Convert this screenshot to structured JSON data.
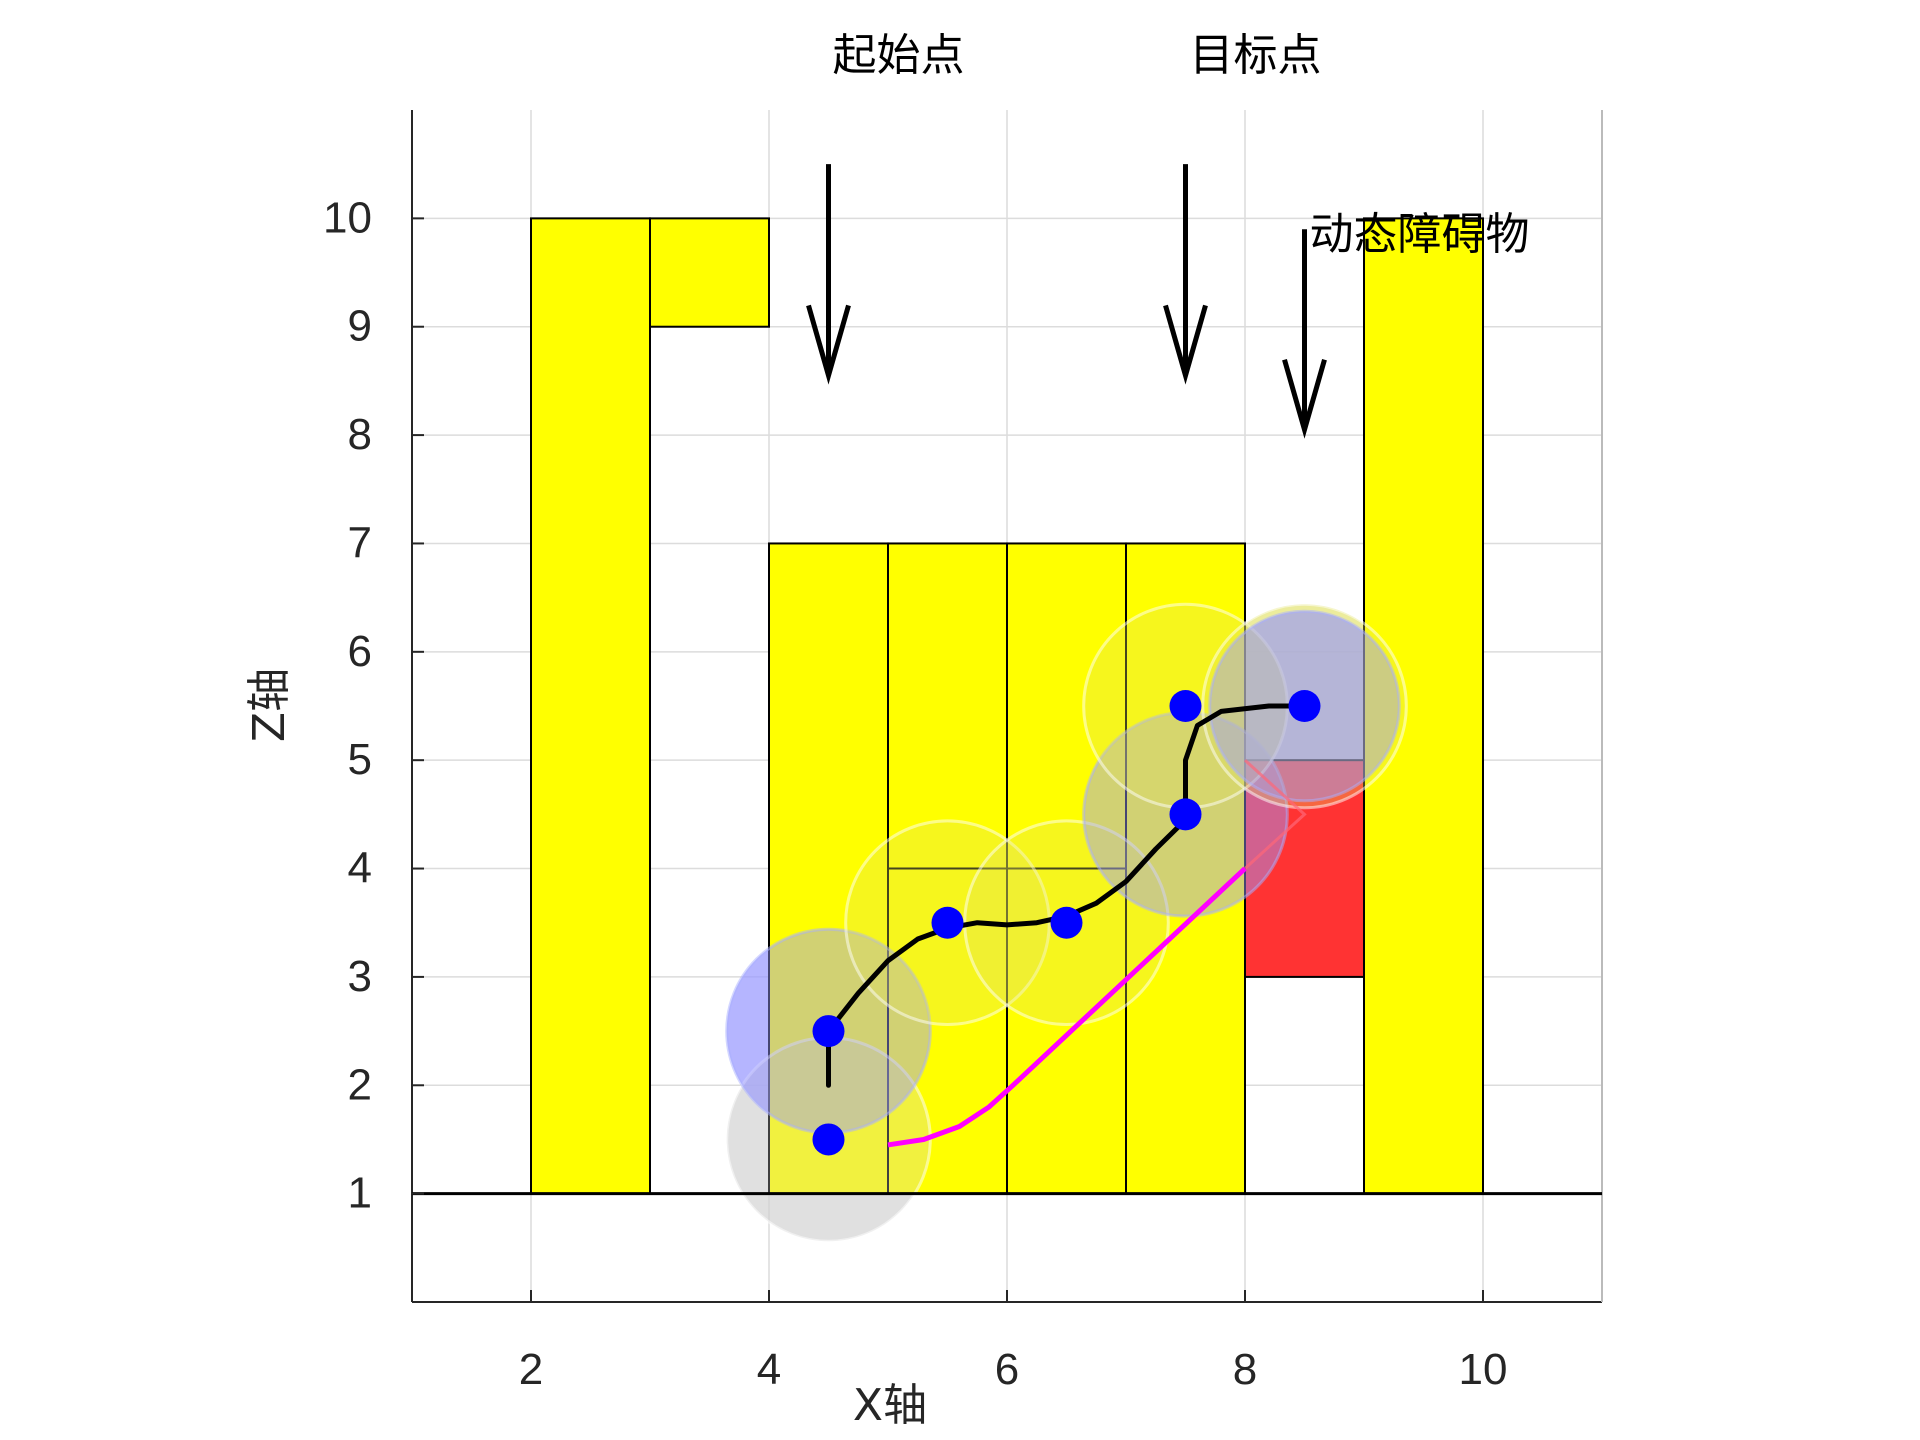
{
  "chart_data": {
    "type": "scatter",
    "title": "",
    "xlabel": "X轴",
    "ylabel": "Z轴",
    "xlim": [
      1,
      11
    ],
    "ylim": [
      0,
      11
    ],
    "grid": true,
    "x_ticks": [
      2,
      4,
      6,
      8,
      10
    ],
    "y_ticks": [
      1,
      2,
      3,
      4,
      5,
      6,
      7,
      8,
      9,
      10
    ],
    "ground_level": 1,
    "colors": {
      "obstacle": "#ffff00",
      "dynamic_obstacle": "#ff3333",
      "waypoint": "#0000ff",
      "path": "#000000",
      "alt_path": "#ff00ff",
      "sphere_blue": "#9999ff",
      "sphere_yellow": "#e0e060",
      "sphere_gray": "#d0d0d0"
    },
    "obstacles": [
      {
        "x0": 2,
        "x1": 3,
        "z0": 1,
        "z1": 10
      },
      {
        "x0": 3,
        "x1": 4,
        "z0": 9,
        "z1": 10
      },
      {
        "x0": 4,
        "x1": 5,
        "z0": 1,
        "z1": 7
      },
      {
        "x0": 5,
        "x1": 6,
        "z0": 1,
        "z1": 7
      },
      {
        "x0": 6,
        "x1": 7,
        "z0": 1,
        "z1": 7
      },
      {
        "x0": 7,
        "x1": 8,
        "z0": 1,
        "z1": 7
      },
      {
        "x0": 5,
        "x1": 7,
        "z0": 4,
        "z1": 4
      },
      {
        "x0": 9,
        "x1": 10,
        "z0": 1,
        "z1": 10
      }
    ],
    "dynamic_obstacle": {
      "x0": 8,
      "x1": 9,
      "z0": 3,
      "z1": 5
    },
    "spheres": [
      {
        "x": 4.5,
        "z": 1.5,
        "r": 1.45,
        "kind": "gray"
      },
      {
        "x": 4.5,
        "z": 2.5,
        "r": 1.45,
        "kind": "blue"
      },
      {
        "x": 5.5,
        "z": 3.5,
        "r": 1.45,
        "kind": "yellow"
      },
      {
        "x": 6.5,
        "z": 3.5,
        "r": 1.45,
        "kind": "yellow"
      },
      {
        "x": 7.5,
        "z": 4.5,
        "r": 1.45,
        "kind": "blue"
      },
      {
        "x": 7.5,
        "z": 5.5,
        "r": 1.45,
        "kind": "yellow"
      },
      {
        "x": 8.5,
        "z": 5.5,
        "r": 1.45,
        "kind": "yellow"
      },
      {
        "x": 8.5,
        "z": 5.5,
        "r": 1.35,
        "kind": "blue"
      }
    ],
    "waypoints": [
      {
        "x": 4.5,
        "z": 1.5
      },
      {
        "x": 4.5,
        "z": 2.5
      },
      {
        "x": 5.5,
        "z": 3.5
      },
      {
        "x": 6.5,
        "z": 3.5
      },
      {
        "x": 7.5,
        "z": 4.5
      },
      {
        "x": 7.5,
        "z": 5.5
      },
      {
        "x": 8.5,
        "z": 5.5
      }
    ],
    "path": [
      [
        4.5,
        2.0
      ],
      [
        4.5,
        2.5
      ],
      [
        4.75,
        2.85
      ],
      [
        5.0,
        3.15
      ],
      [
        5.25,
        3.35
      ],
      [
        5.5,
        3.45
      ],
      [
        5.75,
        3.5
      ],
      [
        6.0,
        3.48
      ],
      [
        6.25,
        3.5
      ],
      [
        6.5,
        3.56
      ],
      [
        6.75,
        3.68
      ],
      [
        7.0,
        3.88
      ],
      [
        7.25,
        4.18
      ],
      [
        7.5,
        4.45
      ],
      [
        7.5,
        5.0
      ],
      [
        7.6,
        5.32
      ],
      [
        7.8,
        5.45
      ],
      [
        8.2,
        5.5
      ],
      [
        8.5,
        5.5
      ]
    ],
    "alt_path": [
      [
        5.0,
        1.45
      ],
      [
        5.3,
        1.5
      ],
      [
        5.6,
        1.62
      ],
      [
        5.85,
        1.8
      ],
      [
        6.05,
        2.0
      ],
      [
        8.0,
        4.0
      ]
    ],
    "dynamic_marker": [
      [
        8.0,
        5.0
      ],
      [
        8.5,
        4.5
      ],
      [
        8.0,
        4.0
      ]
    ],
    "annotations": [
      {
        "text": "起始点",
        "x": 4.5
      },
      {
        "text": "目标点",
        "x": 7.5
      },
      {
        "text": "动态障碍物",
        "x": 8.5
      }
    ],
    "arrows": [
      {
        "x": 4.5,
        "z_top": 10.5,
        "z_tip": 8.55
      },
      {
        "x": 7.5,
        "z_top": 10.5,
        "z_tip": 8.55
      },
      {
        "x": 8.5,
        "z_top": 9.9,
        "z_tip": 8.05
      }
    ]
  }
}
